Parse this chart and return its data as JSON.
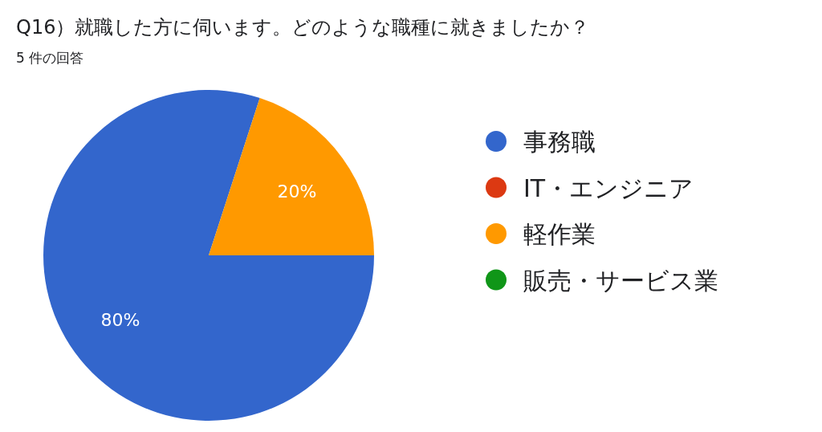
{
  "chart_data": {
    "type": "pie",
    "title": "Q16）就職した方に伺います。どのような職種に就きましたか？",
    "subtitle": "5 件の回答",
    "categories": [
      "事務職",
      "IT・エンジニア",
      "軽作業",
      "販売・サービス業"
    ],
    "values": [
      80,
      0,
      20,
      0
    ],
    "colors": [
      "#3366cc",
      "#dc3912",
      "#ff9900",
      "#109618"
    ],
    "value_labels": [
      "80%",
      null,
      "20%",
      null
    ],
    "legend": "right"
  }
}
